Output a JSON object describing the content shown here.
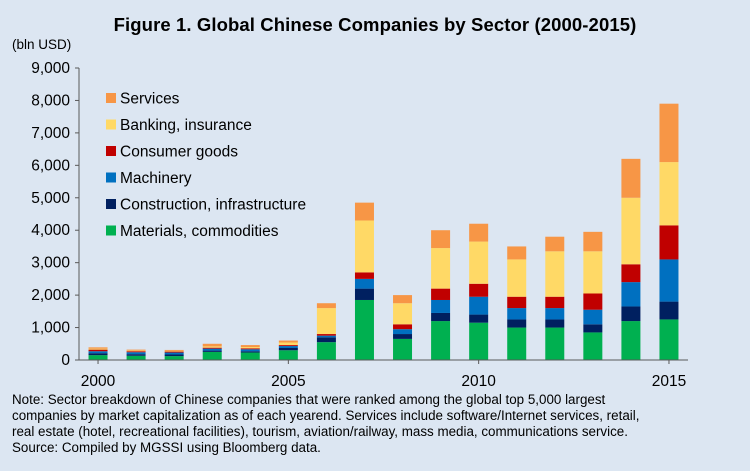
{
  "chart_data": {
    "type": "bar",
    "stacked": true,
    "title": "Figure 1.  Global Chinese Companies by Sector (2000-2015)",
    "ylabel": "(bln USD)",
    "xlabel": "",
    "ylim": [
      0,
      9000
    ],
    "yticks": [
      0,
      1000,
      2000,
      3000,
      4000,
      5000,
      6000,
      7000,
      8000,
      9000
    ],
    "ytick_labels": [
      "0",
      "1,000",
      "2,000",
      "3,000",
      "4,000",
      "5,000",
      "6,000",
      "7,000",
      "8,000",
      "9,000"
    ],
    "categories": [
      2000,
      2001,
      2002,
      2003,
      2004,
      2005,
      2006,
      2007,
      2008,
      2009,
      2010,
      2011,
      2012,
      2013,
      2014,
      2015
    ],
    "xtick_labels": [
      {
        "category": 2000,
        "label": "2000"
      },
      {
        "category": 2005,
        "label": "2005"
      },
      {
        "category": 2010,
        "label": "2010"
      },
      {
        "category": 2015,
        "label": "2015"
      }
    ],
    "legend_position": "top-left",
    "grid": false,
    "series": [
      {
        "name": "Materials, commodities",
        "color": "#00B050",
        "values": [
          150,
          130,
          120,
          250,
          230,
          300,
          550,
          1850,
          650,
          1200,
          1150,
          1000,
          1000,
          850,
          1200,
          1250
        ]
      },
      {
        "name": "Construction, infrastructure",
        "color": "#002060",
        "values": [
          60,
          50,
          50,
          40,
          40,
          70,
          150,
          350,
          150,
          250,
          250,
          250,
          250,
          250,
          450,
          550
        ]
      },
      {
        "name": "Machinery",
        "color": "#0070C0",
        "values": [
          60,
          60,
          60,
          60,
          60,
          60,
          50,
          300,
          150,
          400,
          550,
          350,
          350,
          450,
          750,
          1300
        ]
      },
      {
        "name": "Consumer goods",
        "color": "#C00000",
        "values": [
          50,
          30,
          30,
          30,
          30,
          30,
          50,
          200,
          150,
          350,
          400,
          350,
          350,
          500,
          550,
          1050
        ]
      },
      {
        "name": "Banking, insurance",
        "color": "#FFD966",
        "values": [
          30,
          20,
          20,
          40,
          40,
          80,
          800,
          1600,
          650,
          1250,
          1300,
          1150,
          1400,
          1300,
          2050,
          1950
        ]
      },
      {
        "name": "Services",
        "color": "#F79646",
        "values": [
          40,
          30,
          30,
          80,
          60,
          60,
          150,
          550,
          250,
          550,
          550,
          400,
          450,
          600,
          1200,
          1800
        ]
      }
    ]
  },
  "note": {
    "lines": [
      "Note: Sector breakdown of Chinese companies that were ranked among the global top 5,000 largest",
      "companies by market capitalization as of each yearend. Services include software/Internet services, retail,",
      "real estate (hotel, recreational facilities), tourism, aviation/railway, mass media, communications service.",
      "Source: Compiled by MGSSI using Bloomberg data."
    ]
  }
}
